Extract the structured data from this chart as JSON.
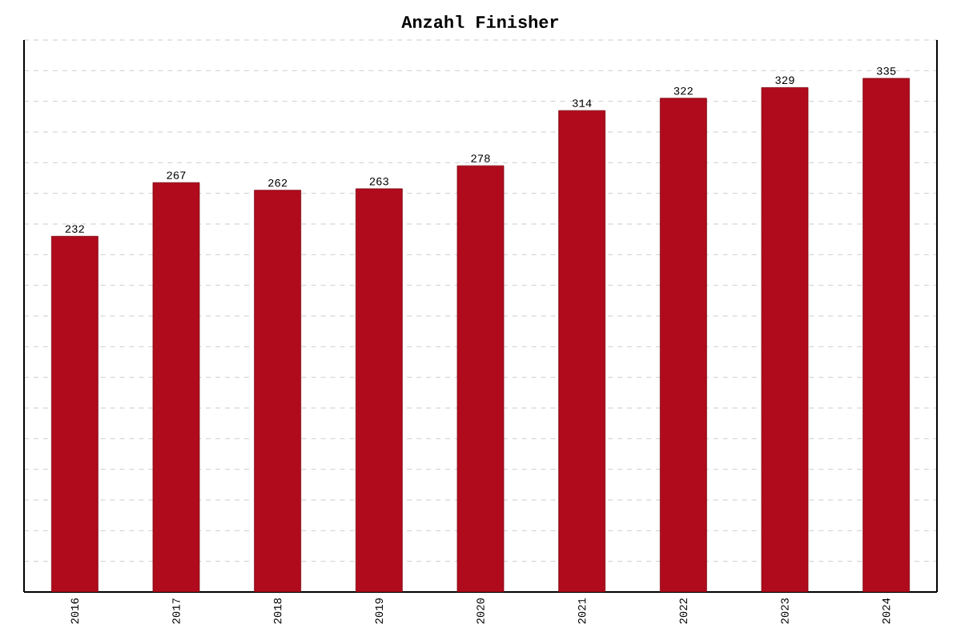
{
  "chart_data": {
    "type": "bar",
    "title": "Anzahl Finisher",
    "categories": [
      "2016",
      "2017",
      "2018",
      "2019",
      "2020",
      "2021",
      "2022",
      "2023",
      "2024"
    ],
    "values": [
      232,
      267,
      262,
      263,
      278,
      314,
      322,
      329,
      335
    ],
    "color": "#b00b1c",
    "data_labels": true,
    "grid": "y",
    "ylim": [
      0,
      360
    ],
    "yticks": [
      {
        "value": 0,
        "label": null
      },
      {
        "value": 20,
        "label": null
      },
      {
        "value": 40,
        "label": null
      },
      {
        "value": 60,
        "label": null
      },
      {
        "value": 80,
        "label": null
      },
      {
        "value": 100,
        "label": null
      },
      {
        "value": 120,
        "label": null
      },
      {
        "value": 140,
        "label": null
      },
      {
        "value": 160,
        "label": null
      },
      {
        "value": 180,
        "label": null
      },
      {
        "value": 200,
        "label": null
      },
      {
        "value": 220,
        "label": null
      },
      {
        "value": 240,
        "label": null
      },
      {
        "value": 260,
        "label": null
      },
      {
        "value": 280,
        "label": null
      },
      {
        "value": 300,
        "label": null
      },
      {
        "value": 320,
        "label": null
      },
      {
        "value": 340,
        "label": null
      },
      {
        "value": 360,
        "label": null
      }
    ],
    "tick_labels": "x"
  }
}
